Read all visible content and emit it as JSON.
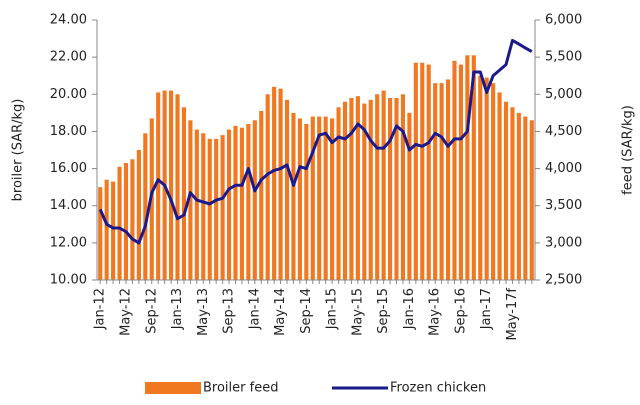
{
  "chart_data": {
    "type": "bar-line",
    "categories": [
      "Jan-12",
      null,
      null,
      null,
      "May-12",
      null,
      null,
      null,
      "Sep-12",
      null,
      null,
      null,
      "Jan-13",
      null,
      null,
      null,
      "May-13",
      null,
      null,
      null,
      "Sep-13",
      null,
      null,
      null,
      "Jan-14",
      null,
      null,
      null,
      "May-14",
      null,
      null,
      null,
      "Sep-14",
      null,
      null,
      null,
      "Jan-15",
      null,
      null,
      null,
      "May-15",
      null,
      null,
      null,
      "Sep-15",
      null,
      null,
      null,
      "Jan-16",
      null,
      null,
      null,
      "May-16",
      null,
      null,
      null,
      "Sep-16",
      null,
      null,
      null,
      "Jan-17",
      null,
      null,
      null,
      "May-17f",
      null,
      null,
      null
    ],
    "series": [
      {
        "name": "Broiler feed",
        "type": "bar",
        "axis": "y2",
        "color": "#f07820",
        "values": [
          3750,
          3850,
          3825,
          4025,
          4075,
          4125,
          4250,
          4475,
          4675,
          5025,
          5050,
          5050,
          5000,
          4825,
          4650,
          4525,
          4475,
          4400,
          4400,
          4450,
          4525,
          4575,
          4550,
          4600,
          4650,
          4775,
          5000,
          5100,
          5075,
          4925,
          4750,
          4675,
          4600,
          4700,
          4700,
          4700,
          4675,
          4825,
          4900,
          4950,
          4975,
          4875,
          4925,
          5000,
          5050,
          4950,
          4950,
          5000,
          4750,
          5425,
          5425,
          5400,
          5150,
          5150,
          5200,
          5450,
          5400,
          5525,
          5525,
          5250,
          5225,
          5150,
          5025,
          4900,
          4825,
          4750,
          4700,
          4650
        ]
      },
      {
        "name": "Frozen chicken",
        "type": "line",
        "color": "#1a1a8c",
        "values": [
          13.8,
          13.0,
          12.8,
          12.8,
          12.6,
          12.2,
          12.0,
          12.9,
          14.7,
          15.4,
          15.1,
          14.3,
          13.3,
          13.5,
          14.7,
          14.3,
          14.2,
          14.1,
          14.3,
          14.4,
          14.9,
          15.1,
          15.1,
          16.0,
          14.8,
          15.4,
          15.7,
          15.9,
          16.0,
          16.2,
          15.1,
          16.1,
          16.0,
          16.9,
          17.8,
          17.9,
          17.4,
          17.7,
          17.6,
          17.9,
          18.4,
          18.1,
          17.5,
          17.1,
          17.1,
          17.5,
          18.3,
          18.0,
          17.0,
          17.3,
          17.2,
          17.4,
          17.9,
          17.7,
          17.2,
          17.6,
          17.6,
          18.0,
          21.2,
          21.2,
          20.1,
          21.0,
          21.3,
          21.6,
          22.9,
          22.7,
          22.5,
          22.3
        ]
      }
    ],
    "ylabel": "broiler (SAR/kg)",
    "y2label": "feed (SAR/kg)",
    "ylim": [
      10,
      24
    ],
    "yticks": [
      {
        "value": 10,
        "label": "10.00"
      },
      {
        "value": 12,
        "label": "12.00"
      },
      {
        "value": 14,
        "label": "14.00"
      },
      {
        "value": 16,
        "label": "16.00"
      },
      {
        "value": 18,
        "label": "18.00"
      },
      {
        "value": 20,
        "label": "20.00"
      },
      {
        "value": 22,
        "label": "22.00"
      },
      {
        "value": 24,
        "label": "24.00"
      }
    ],
    "y2lim": [
      2500,
      6000
    ],
    "y2ticks": [
      {
        "value": 2500,
        "label": "2,500"
      },
      {
        "value": 3000,
        "label": "3,000"
      },
      {
        "value": 3500,
        "label": "3,500"
      },
      {
        "value": 4000,
        "label": "4,000"
      },
      {
        "value": 4500,
        "label": "4,500"
      },
      {
        "value": 5000,
        "label": "5,000"
      },
      {
        "value": 5500,
        "label": "5,500"
      },
      {
        "value": 6000,
        "label": "6,000"
      }
    ],
    "grid": false,
    "legend": "bottom"
  }
}
